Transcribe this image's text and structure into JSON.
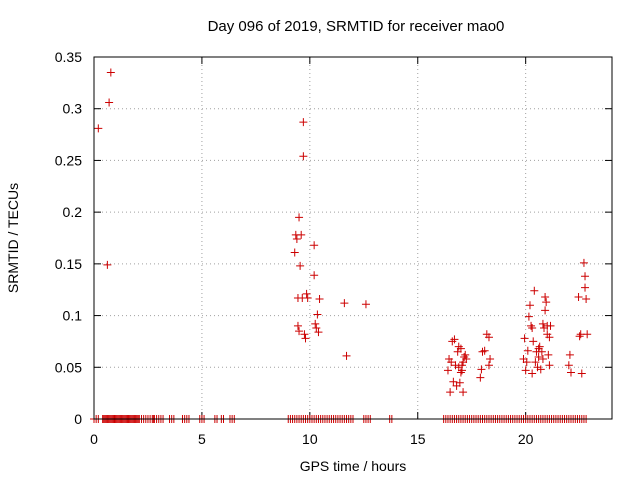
{
  "chart_data": {
    "type": "scatter",
    "title": "Day 096 of 2019, SRMTID for receiver mao0",
    "xlabel": "GPS time / hours",
    "ylabel": "SRMTID / TECUs",
    "xlim": [
      0,
      24
    ],
    "ylim": [
      0,
      0.35
    ],
    "xticks": [
      0,
      5,
      10,
      15,
      20
    ],
    "xtick_labels": [
      "0",
      "5",
      "10",
      "15",
      "20"
    ],
    "yticks": [
      0,
      0.05,
      0.1,
      0.15,
      0.2,
      0.25,
      0.3,
      0.35
    ],
    "ytick_labels": [
      "0",
      "0.05",
      "0.1",
      "0.15",
      "0.2",
      "0.25",
      "0.3",
      "0.35"
    ],
    "grid": true,
    "marker": "+",
    "color": "#cc0000",
    "series": [
      {
        "name": "SRMTID",
        "points": [
          [
            0.2,
            0.281
          ],
          [
            0.62,
            0.149
          ],
          [
            0.7,
            0.306
          ],
          [
            0.78,
            0.335
          ],
          [
            9.3,
            0.161
          ],
          [
            9.35,
            0.178
          ],
          [
            9.4,
            0.174
          ],
          [
            9.45,
            0.117
          ],
          [
            9.5,
            0.195
          ],
          [
            9.55,
            0.148
          ],
          [
            9.6,
            0.178
          ],
          [
            9.45,
            0.09
          ],
          [
            9.5,
            0.085
          ],
          [
            9.65,
            0.117
          ],
          [
            9.7,
            0.287
          ],
          [
            9.7,
            0.254
          ],
          [
            9.75,
            0.082
          ],
          [
            9.8,
            0.078
          ],
          [
            9.85,
            0.121
          ],
          [
            9.9,
            0.117
          ],
          [
            10.2,
            0.168
          ],
          [
            10.2,
            0.139
          ],
          [
            10.25,
            0.092
          ],
          [
            10.3,
            0.088
          ],
          [
            10.35,
            0.101
          ],
          [
            10.4,
            0.084
          ],
          [
            10.45,
            0.116
          ],
          [
            11.6,
            0.112
          ],
          [
            11.7,
            0.061
          ],
          [
            12.6,
            0.111
          ],
          [
            16.4,
            0.047
          ],
          [
            16.45,
            0.058
          ],
          [
            16.5,
            0.026
          ],
          [
            16.55,
            0.055
          ],
          [
            16.6,
            0.075
          ],
          [
            16.65,
            0.036
          ],
          [
            16.7,
            0.077
          ],
          [
            16.75,
            0.052
          ],
          [
            16.8,
            0.032
          ],
          [
            16.85,
            0.065
          ],
          [
            16.9,
            0.05
          ],
          [
            16.95,
            0.035
          ],
          [
            17.0,
            0.068
          ],
          [
            17.05,
            0.047
          ],
          [
            17.1,
            0.026
          ],
          [
            17.1,
            0.055
          ],
          [
            17.15,
            0.06
          ],
          [
            17.2,
            0.062
          ],
          [
            17.25,
            0.058
          ],
          [
            17.0,
            0.045
          ],
          [
            17.05,
            0.052
          ],
          [
            16.9,
            0.07
          ],
          [
            17.9,
            0.04
          ],
          [
            17.95,
            0.048
          ],
          [
            18.0,
            0.065
          ],
          [
            18.1,
            0.066
          ],
          [
            18.2,
            0.082
          ],
          [
            18.3,
            0.079
          ],
          [
            18.3,
            0.052
          ],
          [
            18.35,
            0.058
          ],
          [
            19.9,
            0.058
          ],
          [
            19.95,
            0.078
          ],
          [
            20.0,
            0.047
          ],
          [
            20.05,
            0.055
          ],
          [
            20.1,
            0.066
          ],
          [
            20.15,
            0.099
          ],
          [
            20.2,
            0.11
          ],
          [
            20.25,
            0.09
          ],
          [
            20.3,
            0.088
          ],
          [
            20.35,
            0.075
          ],
          [
            20.3,
            0.044
          ],
          [
            20.4,
            0.124
          ],
          [
            20.45,
            0.055
          ],
          [
            20.5,
            0.065
          ],
          [
            20.55,
            0.05
          ],
          [
            20.6,
            0.06
          ],
          [
            20.65,
            0.07
          ],
          [
            20.7,
            0.048
          ],
          [
            20.75,
            0.065
          ],
          [
            20.8,
            0.092
          ],
          [
            20.85,
            0.088
          ],
          [
            20.9,
            0.118
          ],
          [
            20.9,
            0.105
          ],
          [
            20.95,
            0.113
          ],
          [
            21.0,
            0.082
          ],
          [
            21.0,
            0.09
          ],
          [
            21.05,
            0.062
          ],
          [
            21.1,
            0.079
          ],
          [
            21.1,
            0.052
          ],
          [
            21.15,
            0.09
          ],
          [
            20.8,
            0.058
          ],
          [
            20.6,
            0.068
          ],
          [
            22.0,
            0.052
          ],
          [
            22.05,
            0.062
          ],
          [
            22.1,
            0.045
          ],
          [
            22.45,
            0.118
          ],
          [
            22.5,
            0.08
          ],
          [
            22.55,
            0.082
          ],
          [
            22.6,
            0.044
          ],
          [
            22.7,
            0.151
          ],
          [
            22.75,
            0.138
          ],
          [
            22.75,
            0.127
          ],
          [
            22.8,
            0.116
          ],
          [
            22.85,
            0.082
          ],
          [
            0.0,
            0
          ],
          [
            0.1,
            0
          ],
          [
            0.2,
            0
          ],
          [
            0.4,
            0
          ],
          [
            0.45,
            0
          ],
          [
            0.5,
            0
          ],
          [
            0.55,
            0
          ],
          [
            0.6,
            0
          ],
          [
            0.65,
            0
          ],
          [
            0.7,
            0
          ],
          [
            0.75,
            0
          ],
          [
            0.8,
            0
          ],
          [
            0.85,
            0
          ],
          [
            0.9,
            0
          ],
          [
            0.95,
            0
          ],
          [
            1.0,
            0
          ],
          [
            1.05,
            0
          ],
          [
            1.1,
            0
          ],
          [
            1.15,
            0
          ],
          [
            1.2,
            0
          ],
          [
            1.25,
            0
          ],
          [
            1.3,
            0
          ],
          [
            1.35,
            0
          ],
          [
            1.4,
            0
          ],
          [
            1.45,
            0
          ],
          [
            1.5,
            0
          ],
          [
            1.55,
            0
          ],
          [
            1.6,
            0
          ],
          [
            1.65,
            0
          ],
          [
            1.7,
            0
          ],
          [
            1.75,
            0
          ],
          [
            1.8,
            0
          ],
          [
            1.85,
            0
          ],
          [
            1.9,
            0
          ],
          [
            1.95,
            0
          ],
          [
            2.0,
            0
          ],
          [
            2.05,
            0
          ],
          [
            2.1,
            0
          ],
          [
            2.2,
            0
          ],
          [
            2.3,
            0
          ],
          [
            2.4,
            0
          ],
          [
            2.5,
            0
          ],
          [
            2.6,
            0
          ],
          [
            2.7,
            0
          ],
          [
            2.75,
            0
          ],
          [
            2.8,
            0
          ],
          [
            2.9,
            0
          ],
          [
            3.0,
            0
          ],
          [
            3.1,
            0
          ],
          [
            3.2,
            0
          ],
          [
            3.5,
            0
          ],
          [
            3.6,
            0
          ],
          [
            3.7,
            0
          ],
          [
            4.1,
            0
          ],
          [
            4.2,
            0
          ],
          [
            4.3,
            0
          ],
          [
            4.4,
            0
          ],
          [
            4.9,
            0
          ],
          [
            5.0,
            0
          ],
          [
            5.1,
            0
          ],
          [
            5.6,
            0
          ],
          [
            5.7,
            0
          ],
          [
            5.9,
            0
          ],
          [
            6.0,
            0
          ],
          [
            6.3,
            0
          ],
          [
            6.4,
            0
          ],
          [
            6.5,
            0
          ],
          [
            9.0,
            0
          ],
          [
            9.1,
            0
          ],
          [
            9.2,
            0
          ],
          [
            9.3,
            0
          ],
          [
            9.4,
            0
          ],
          [
            9.5,
            0
          ],
          [
            9.6,
            0
          ],
          [
            9.7,
            0
          ],
          [
            9.8,
            0
          ],
          [
            9.9,
            0
          ],
          [
            10.0,
            0
          ],
          [
            10.1,
            0
          ],
          [
            10.2,
            0
          ],
          [
            10.3,
            0
          ],
          [
            10.4,
            0
          ],
          [
            10.5,
            0
          ],
          [
            10.6,
            0
          ],
          [
            10.7,
            0
          ],
          [
            10.8,
            0
          ],
          [
            10.9,
            0
          ],
          [
            11.0,
            0
          ],
          [
            11.1,
            0
          ],
          [
            11.2,
            0
          ],
          [
            11.3,
            0
          ],
          [
            11.4,
            0
          ],
          [
            11.5,
            0
          ],
          [
            11.6,
            0
          ],
          [
            11.7,
            0
          ],
          [
            11.8,
            0
          ],
          [
            11.9,
            0
          ],
          [
            12.0,
            0
          ],
          [
            12.5,
            0
          ],
          [
            12.6,
            0
          ],
          [
            12.7,
            0
          ],
          [
            12.8,
            0
          ],
          [
            13.7,
            0
          ],
          [
            13.8,
            0
          ],
          [
            16.2,
            0
          ],
          [
            16.3,
            0
          ],
          [
            16.4,
            0
          ],
          [
            16.5,
            0
          ],
          [
            16.6,
            0
          ],
          [
            16.7,
            0
          ],
          [
            16.8,
            0
          ],
          [
            16.9,
            0
          ],
          [
            17.0,
            0
          ],
          [
            17.1,
            0
          ],
          [
            17.2,
            0
          ],
          [
            17.3,
            0
          ],
          [
            17.4,
            0
          ],
          [
            17.5,
            0
          ],
          [
            17.6,
            0
          ],
          [
            17.7,
            0
          ],
          [
            17.8,
            0
          ],
          [
            17.9,
            0
          ],
          [
            18.0,
            0
          ],
          [
            18.1,
            0
          ],
          [
            18.2,
            0
          ],
          [
            18.3,
            0
          ],
          [
            18.4,
            0
          ],
          [
            18.5,
            0
          ],
          [
            18.6,
            0
          ],
          [
            18.7,
            0
          ],
          [
            18.8,
            0
          ],
          [
            18.9,
            0
          ],
          [
            19.0,
            0
          ],
          [
            19.1,
            0
          ],
          [
            19.2,
            0
          ],
          [
            19.3,
            0
          ],
          [
            19.4,
            0
          ],
          [
            19.5,
            0
          ],
          [
            19.6,
            0
          ],
          [
            19.7,
            0
          ],
          [
            19.8,
            0
          ],
          [
            19.9,
            0
          ],
          [
            20.0,
            0
          ],
          [
            20.1,
            0
          ],
          [
            20.2,
            0
          ],
          [
            20.3,
            0
          ],
          [
            20.4,
            0
          ],
          [
            20.5,
            0
          ],
          [
            20.6,
            0
          ],
          [
            20.7,
            0
          ],
          [
            20.8,
            0
          ],
          [
            20.9,
            0
          ],
          [
            21.0,
            0
          ],
          [
            21.1,
            0
          ],
          [
            21.2,
            0
          ],
          [
            21.3,
            0
          ],
          [
            21.4,
            0
          ],
          [
            21.5,
            0
          ],
          [
            21.6,
            0
          ],
          [
            21.7,
            0
          ],
          [
            21.8,
            0
          ],
          [
            21.9,
            0
          ],
          [
            22.0,
            0
          ],
          [
            22.1,
            0
          ],
          [
            22.2,
            0
          ],
          [
            22.3,
            0
          ],
          [
            22.4,
            0
          ],
          [
            22.5,
            0
          ],
          [
            22.6,
            0
          ],
          [
            22.7,
            0
          ],
          [
            22.8,
            0
          ]
        ]
      }
    ]
  }
}
